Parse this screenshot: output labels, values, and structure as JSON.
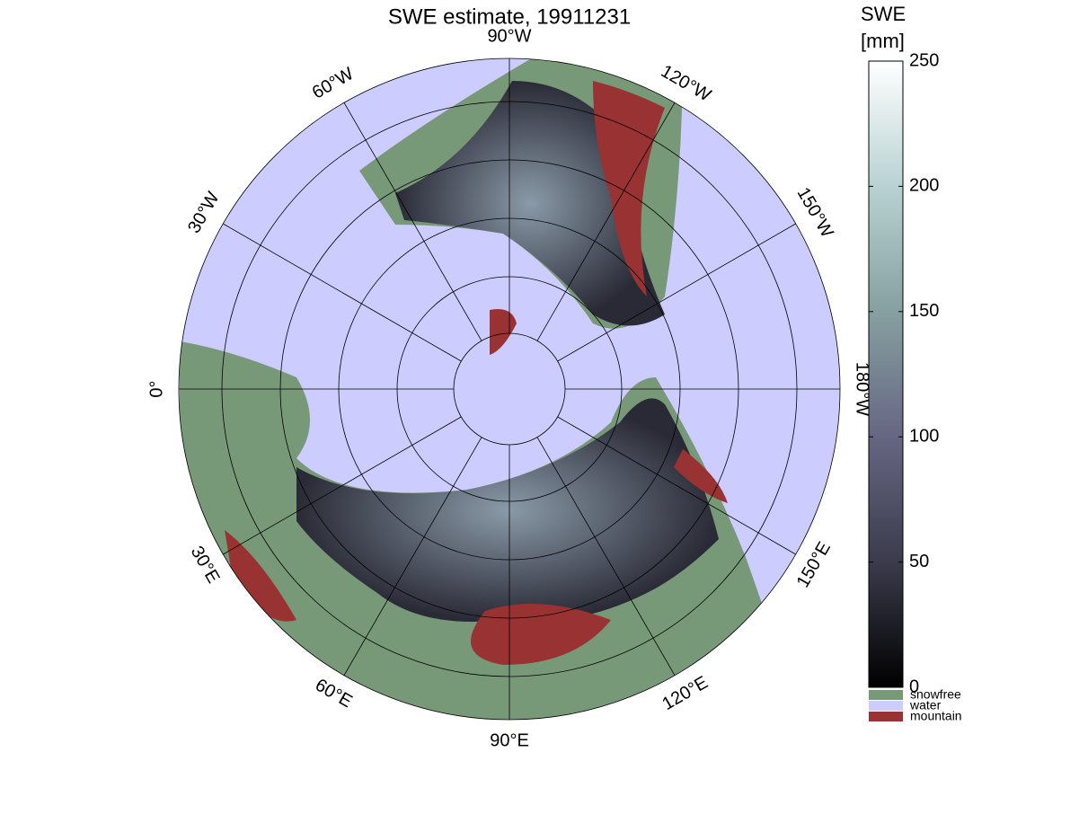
{
  "title": "SWE estimate, 19911231",
  "map": {
    "meridians": [
      {
        "value": -90,
        "label": "90°W"
      },
      {
        "value": -120,
        "label": "120°W"
      },
      {
        "value": -150,
        "label": "150°W"
      },
      {
        "value": 180,
        "label": "180°W"
      },
      {
        "value": 150,
        "label": "150°E"
      },
      {
        "value": 120,
        "label": "120°E"
      },
      {
        "value": 90,
        "label": "90°E"
      },
      {
        "value": 60,
        "label": "60°E"
      },
      {
        "value": 30,
        "label": "30°E"
      },
      {
        "value": 0,
        "label": "0°"
      },
      {
        "value": -30,
        "label": "30°W"
      },
      {
        "value": -60,
        "label": "60°W"
      }
    ]
  },
  "colorbar": {
    "label": [
      "SWE",
      "[mm]"
    ],
    "lim": [
      0,
      250
    ],
    "ticks": [
      0,
      50,
      100,
      150,
      200,
      250
    ]
  },
  "legend": [
    {
      "name": "snowfree",
      "color": "#779977"
    },
    {
      "name": "water",
      "color": "#ccccff"
    },
    {
      "name": "mountain",
      "color": "#993333"
    }
  ]
}
